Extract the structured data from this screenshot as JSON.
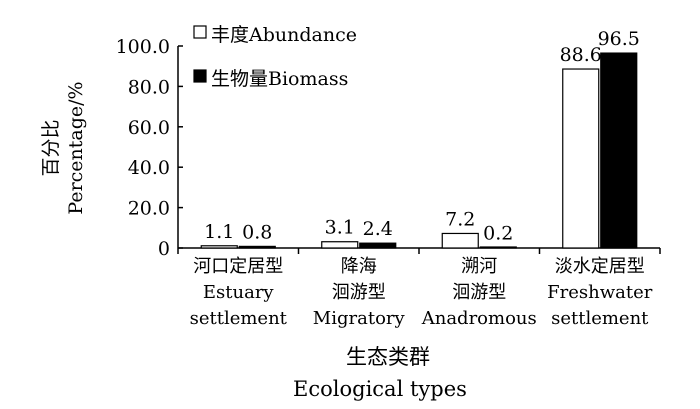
{
  "chart_data": {
    "type": "bar",
    "categories": [
      [
        "河口定居型",
        "Estuary",
        "settlement"
      ],
      [
        "降海",
        "洄游型",
        "Migratory"
      ],
      [
        "溯河",
        "洄游型",
        "Anadromous"
      ],
      [
        "淡水定居型",
        "Freshwater",
        "settlement"
      ]
    ],
    "series": [
      {
        "name": "丰度Abundance",
        "values": [
          1.1,
          3.1,
          7.2,
          88.6
        ],
        "fill": "#ffffff"
      },
      {
        "name": "生物量Biomass",
        "values": [
          0.8,
          2.4,
          0.2,
          96.5
        ],
        "fill": "#000000"
      }
    ],
    "data_labels": [
      [
        "1.1",
        "3.1",
        "7.2",
        "88.6"
      ],
      [
        "0.8",
        "2.4",
        "0.2",
        "96.5"
      ]
    ],
    "y_ticks": [
      "0",
      "20.0",
      "40.0",
      "60.0",
      "80.0",
      "100.0"
    ],
    "ylim": [
      0,
      100
    ],
    "ylabel": [
      "百分比",
      "Percentage/%"
    ],
    "xlabel": [
      "生态类群",
      "Ecological types"
    ],
    "legend_position": "top-left",
    "grid": false,
    "colors": {
      "abundance": "#ffffff",
      "biomass": "#000000",
      "axis": "#000000"
    }
  }
}
